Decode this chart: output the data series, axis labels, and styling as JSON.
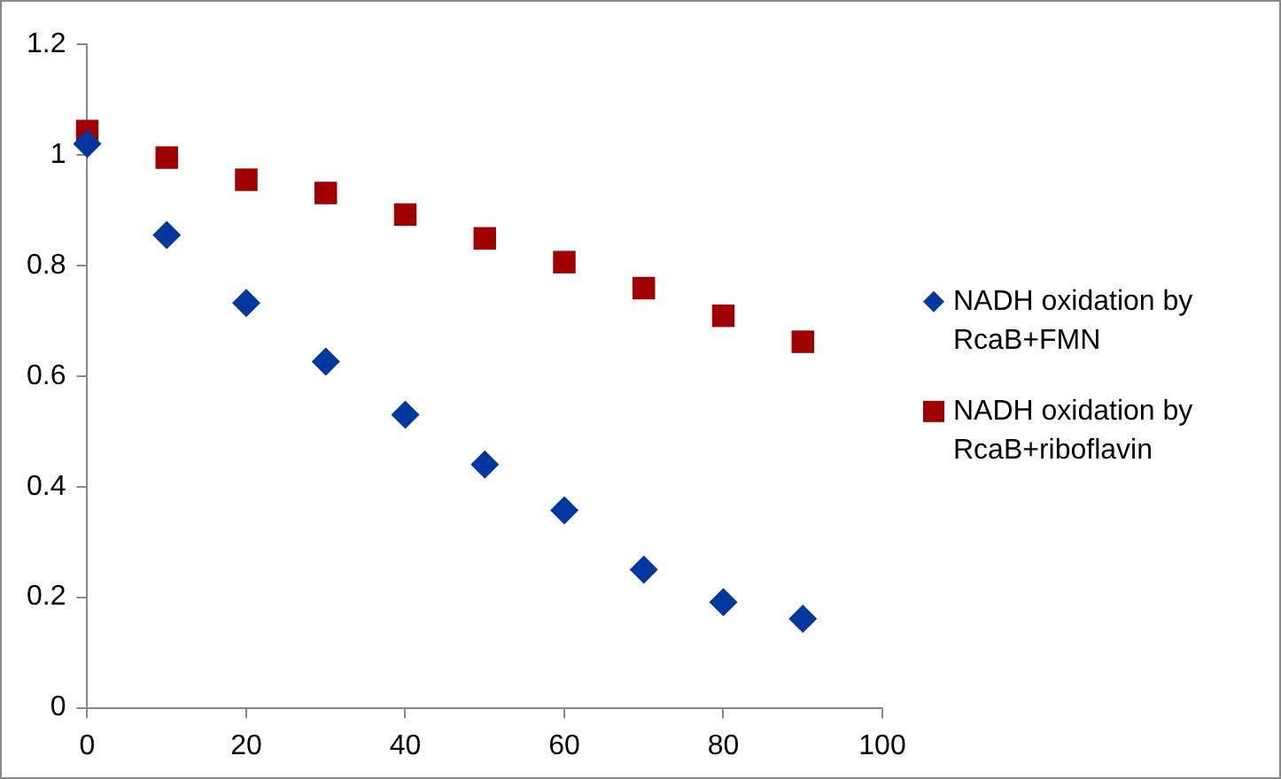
{
  "chart_data": {
    "type": "scatter",
    "x": [
      0,
      10,
      20,
      30,
      40,
      50,
      60,
      70,
      80,
      90
    ],
    "series": [
      {
        "name": "NADH oxidation by RcaB+FMN",
        "color": "#0038a0",
        "marker": "diamond",
        "values": [
          1.02,
          0.855,
          0.732,
          0.626,
          0.53,
          0.44,
          0.357,
          0.25,
          0.191,
          0.161
        ]
      },
      {
        "name": "NADH oxidation by RcaB+riboflavin",
        "color": "#a00000",
        "marker": "square",
        "values": [
          1.043,
          0.995,
          0.955,
          0.931,
          0.892,
          0.849,
          0.806,
          0.759,
          0.709,
          0.662
        ]
      }
    ],
    "xlim": [
      0,
      100
    ],
    "xticks": [
      0,
      20,
      40,
      60,
      80,
      100
    ],
    "ylim": [
      0,
      1.2
    ],
    "yticks": [
      0,
      0.2,
      0.4,
      0.6,
      0.8,
      1,
      1.2
    ],
    "grid": false,
    "legend": "right"
  }
}
